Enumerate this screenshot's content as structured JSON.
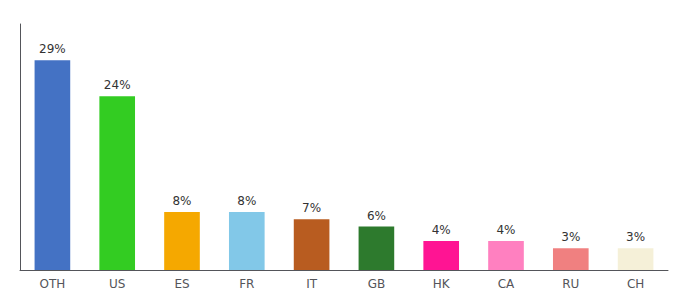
{
  "chart_data": {
    "type": "bar",
    "categories": [
      "OTH",
      "US",
      "ES",
      "FR",
      "IT",
      "GB",
      "HK",
      "CA",
      "RU",
      "CH"
    ],
    "values": [
      29,
      24,
      8,
      8,
      7,
      6,
      4,
      4,
      3,
      3
    ],
    "value_labels": [
      "29%",
      "24%",
      "8%",
      "8%",
      "7%",
      "6%",
      "4%",
      "4%",
      "3%",
      "3%"
    ],
    "colors": [
      "#4472c4",
      "#33cc22",
      "#f5a800",
      "#82c8e8",
      "#b85c20",
      "#2d7a2d",
      "#ff1493",
      "#ff80c0",
      "#f08080",
      "#f5f0d8"
    ],
    "ylim": [
      0,
      34
    ],
    "grid": false,
    "data_labels": true,
    "tick_labels": "x"
  }
}
